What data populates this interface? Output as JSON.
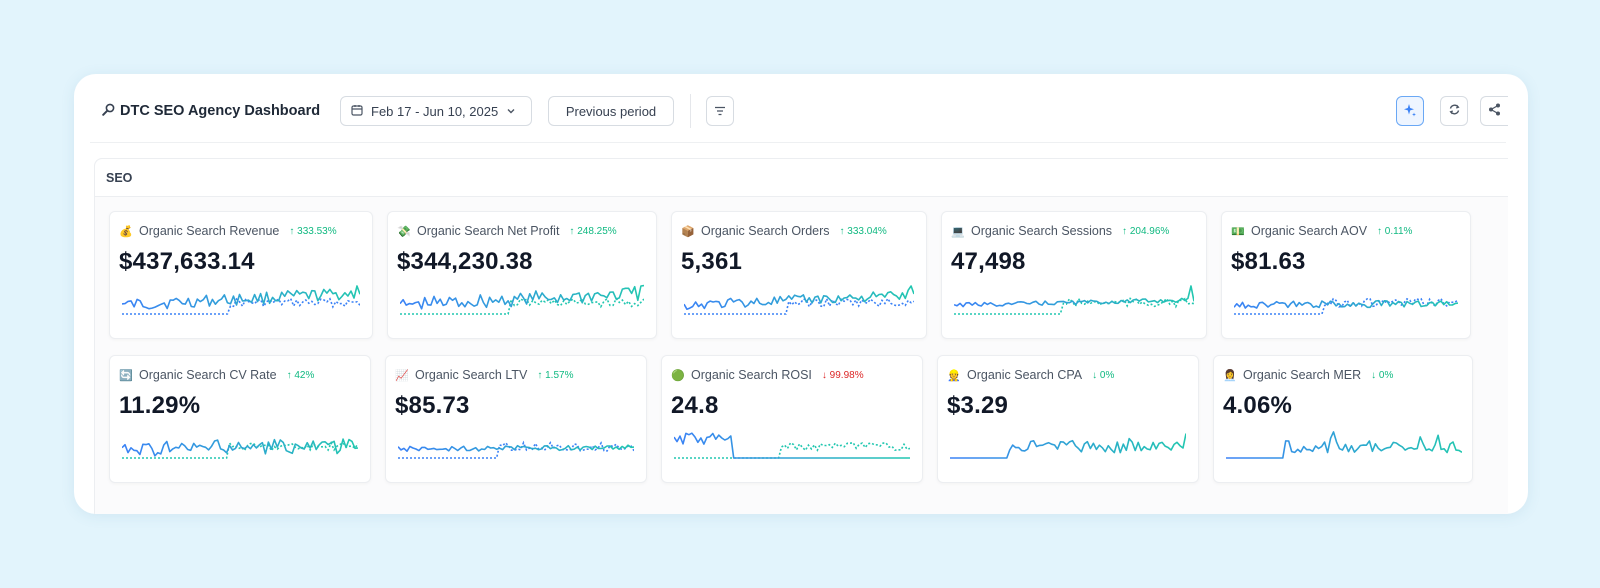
{
  "header": {
    "title": "DTC SEO Agency Dashboard",
    "title_icon": "magnifier-icon",
    "date_range": "Feb 17 - Jun 10, 2025",
    "compare_label": "Previous period"
  },
  "section": {
    "title": "SEO"
  },
  "colors": {
    "current_line": "#22c7b0",
    "current_line_alt": "#3b82f6",
    "previous_line": "#3b82f6",
    "change_up": "#10b981",
    "change_down_bad": "#dc2626",
    "ai_button": "#3b82f6"
  },
  "metrics": [
    {
      "emoji": "💰",
      "name": "Organic Search Revenue",
      "change": "↑ 333.53%",
      "change_dir": "up",
      "value": "$437,633.14"
    },
    {
      "emoji": "💸",
      "name": "Organic Search Net Profit",
      "change": "↑ 248.25%",
      "change_dir": "up",
      "value": "$344,230.38"
    },
    {
      "emoji": "📦",
      "name": "Organic Search Orders",
      "change": "↑ 333.04%",
      "change_dir": "up",
      "value": "5,361"
    },
    {
      "emoji": "💻",
      "name": "Organic Search Sessions",
      "change": "↑ 204.96%",
      "change_dir": "up",
      "value": "47,498"
    },
    {
      "emoji": "💵",
      "name": "Organic Search AOV",
      "change": "↑ 0.11%",
      "change_dir": "up",
      "value": "$81.63"
    },
    {
      "emoji": "🔄",
      "name": "Organic Search CV Rate",
      "change": "↑ 42%",
      "change_dir": "up",
      "value": "11.29%"
    },
    {
      "emoji": "📈",
      "name": "Organic Search LTV",
      "change": "↑ 1.57%",
      "change_dir": "up",
      "value": "$85.73"
    },
    {
      "emoji": "🟢",
      "name": "Organic Search ROSI",
      "change": "↓ 99.98%",
      "change_dir": "down-red",
      "value": "24.8"
    },
    {
      "emoji": "👷",
      "name": "Organic Search CPA",
      "change": "↓ 0%",
      "change_dir": "down-green",
      "value": "$3.29"
    },
    {
      "emoji": "👩‍💼",
      "name": "Organic Search MER",
      "change": "↓ 0%",
      "change_dir": "down-green",
      "value": "4.06%"
    }
  ]
}
